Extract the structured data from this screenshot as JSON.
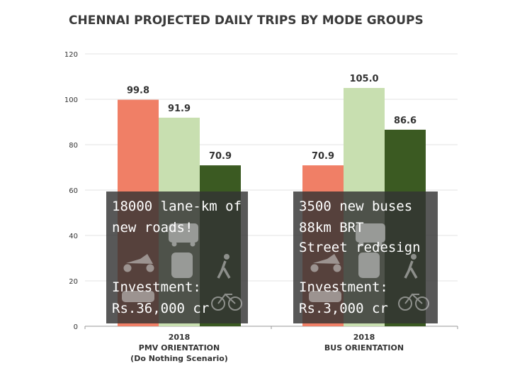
{
  "chart_data": {
    "type": "bar",
    "title": "CHENNAI PROJECTED DAILY TRIPS BY MODE GROUPS",
    "ylim": [
      0,
      120
    ],
    "yticks": [
      0,
      20,
      40,
      60,
      80,
      100,
      120
    ],
    "grid": true,
    "colors": [
      "#f07f66",
      "#c8dfb0",
      "#3b5a22"
    ],
    "groups": [
      {
        "label_lines": [
          "2018",
          "PMV ORIENTATION",
          "(Do Nothing Scenario)"
        ],
        "values": [
          99.8,
          91.9,
          70.9
        ],
        "value_labels": [
          "99.8",
          "91.9",
          "70.9"
        ]
      },
      {
        "label_lines": [
          "2018",
          "BUS ORIENTATION"
        ],
        "values": [
          70.9,
          105.0,
          86.6
        ],
        "value_labels": [
          "70.9",
          "105.0",
          "86.6"
        ]
      }
    ]
  },
  "overlays": [
    {
      "lines": [
        "18000 lane-km of",
        "new roads!",
        "",
        "Investment:",
        "Rs.36,000 cr"
      ]
    },
    {
      "lines": [
        "3500 new buses",
        "88km BRT",
        "Street redesign",
        "Investment:",
        "Rs.3,000 cr"
      ]
    }
  ]
}
